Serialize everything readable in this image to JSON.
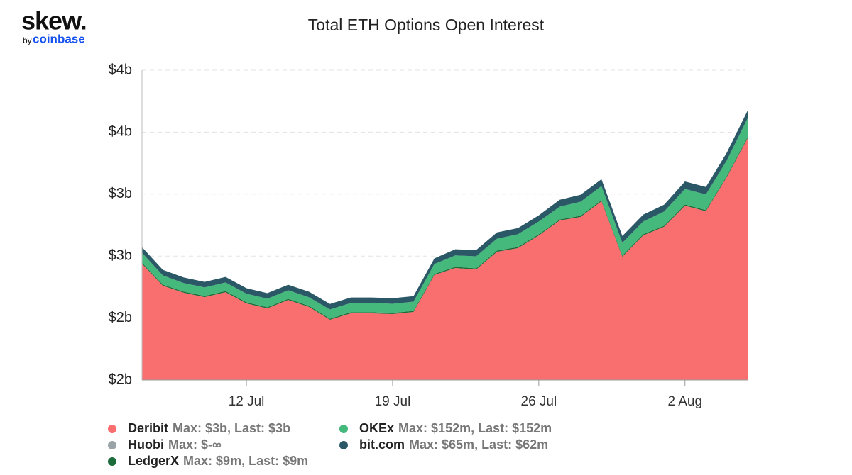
{
  "logo": {
    "brand": "skew.",
    "byline": "by",
    "company": "coinbase"
  },
  "chart_data": {
    "type": "stacked_area",
    "title": "Total ETH Options Open Interest",
    "categories": [
      null,
      null,
      null,
      null,
      null,
      "12 Jul",
      null,
      null,
      null,
      null,
      null,
      null,
      "19 Jul",
      null,
      null,
      null,
      null,
      null,
      null,
      "26 Jul",
      null,
      null,
      null,
      null,
      null,
      null,
      "2 Aug",
      null,
      null,
      null
    ],
    "ylim": [
      1.5,
      4.0
    ],
    "yticks": [
      {
        "value": 1.5,
        "label": "$2b"
      },
      {
        "value": 2.0,
        "label": "$2b"
      },
      {
        "value": 2.5,
        "label": "$3b"
      },
      {
        "value": 3.0,
        "label": "$3b"
      },
      {
        "value": 3.5,
        "label": "$4b"
      },
      {
        "value": 4.0,
        "label": "$4b"
      }
    ],
    "grid": true,
    "series": [
      {
        "name": "Deribit",
        "stats": "Max: $3b, Last: $3b",
        "color": "#f96e6e",
        "values": [
          2.438,
          2.261,
          2.204,
          2.169,
          2.209,
          2.118,
          2.078,
          2.146,
          2.089,
          1.986,
          2.038,
          2.038,
          2.032,
          2.049,
          2.347,
          2.404,
          2.392,
          2.535,
          2.564,
          2.667,
          2.787,
          2.816,
          2.942,
          2.495,
          2.667,
          2.736,
          2.907,
          2.862,
          3.137,
          3.451
        ]
      },
      {
        "name": "Huobi",
        "stats": "Max: $-∞",
        "color": "#9aa3a8",
        "values": [
          null,
          null,
          null,
          null,
          null,
          null,
          null,
          null,
          null,
          null,
          null,
          null,
          null,
          null,
          null,
          null,
          null,
          null,
          null,
          null,
          null,
          null,
          null,
          null,
          null,
          null,
          null,
          null,
          null,
          null
        ]
      },
      {
        "name": "LedgerX",
        "stats": "Max: $9m, Last: $9m",
        "color": "#1d6b3a",
        "values": [
          0.009,
          0.009,
          0.009,
          0.009,
          0.009,
          0.009,
          0.009,
          0.009,
          0.009,
          0.009,
          0.009,
          0.009,
          0.009,
          0.009,
          0.009,
          0.009,
          0.009,
          0.009,
          0.009,
          0.009,
          0.009,
          0.009,
          0.009,
          0.009,
          0.009,
          0.009,
          0.009,
          0.009,
          0.009,
          0.009
        ]
      },
      {
        "name": "OKEx",
        "stats": "Max: $152m, Last: $152m",
        "color": "#45b87c",
        "values": [
          0.08,
          0.074,
          0.069,
          0.069,
          0.069,
          0.069,
          0.069,
          0.069,
          0.069,
          0.074,
          0.074,
          0.074,
          0.074,
          0.074,
          0.08,
          0.092,
          0.097,
          0.097,
          0.103,
          0.103,
          0.103,
          0.114,
          0.114,
          0.103,
          0.103,
          0.114,
          0.126,
          0.126,
          0.126,
          0.152
        ]
      },
      {
        "name": "bit.com",
        "stats": "Max: $65m, Last: $62m",
        "color": "#2a5866",
        "values": [
          0.045,
          0.045,
          0.045,
          0.045,
          0.045,
          0.045,
          0.045,
          0.045,
          0.045,
          0.045,
          0.045,
          0.045,
          0.045,
          0.045,
          0.045,
          0.05,
          0.05,
          0.05,
          0.05,
          0.05,
          0.055,
          0.055,
          0.055,
          0.055,
          0.055,
          0.055,
          0.06,
          0.06,
          0.062,
          0.062
        ]
      }
    ]
  }
}
